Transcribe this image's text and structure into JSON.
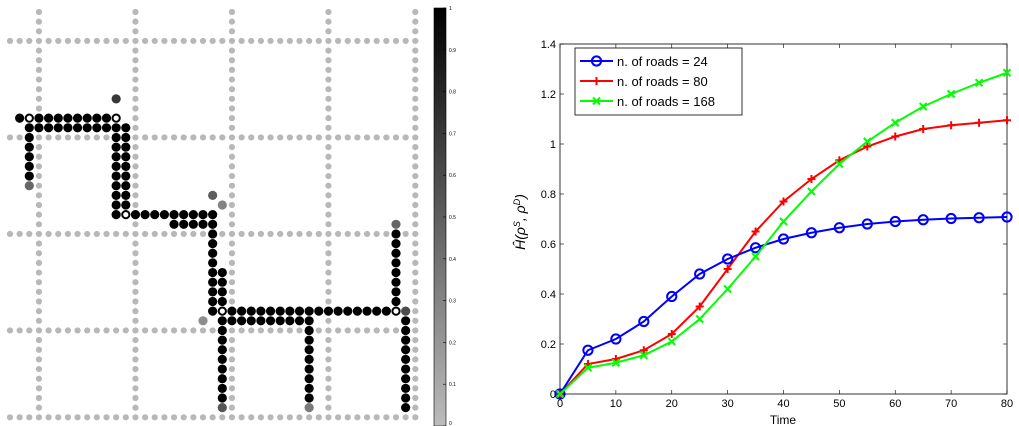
{
  "chart_data": [
    {
      "type": "heatmap",
      "grid": {
        "cols": 43,
        "rows": 43,
        "road_lines": [
          3,
          13,
          23,
          33,
          42
        ]
      },
      "legend": {
        "paths": [
          [
            [
              1,
              11
            ],
            [
              11,
              11
            ],
            [
              11,
              21
            ],
            [
              21,
              21
            ],
            [
              21,
              31
            ],
            [
              40,
              31
            ],
            [
              40,
              23
            ]
          ],
          [
            [
              2,
              12
            ],
            [
              2,
              17
            ]
          ],
          [
            [
              2,
              12
            ],
            [
              11,
              12
            ],
            [
              12,
              12
            ],
            [
              12,
              20
            ],
            [
              13,
              21
            ],
            [
              21,
              22
            ],
            [
              22,
              32
            ],
            [
              31,
              32
            ],
            [
              31,
              40
            ]
          ],
          [
            [
              22,
              32
            ],
            [
              22,
              40
            ]
          ],
          [
            [
              41,
              32
            ],
            [
              41,
              41
            ]
          ]
        ],
        "partial": [
          {
            "c": 11,
            "r": 9,
            "v": 0.7
          },
          {
            "c": 2,
            "r": 18,
            "v": 0.45
          },
          {
            "c": 21,
            "r": 19,
            "v": 0.5
          },
          {
            "c": 22,
            "r": 20,
            "v": 0.3
          },
          {
            "c": 40,
            "r": 22,
            "v": 0.45
          },
          {
            "c": 20,
            "r": 32,
            "v": 0.25
          },
          {
            "c": 22,
            "r": 41,
            "v": 0.55
          },
          {
            "c": 31,
            "r": 41,
            "v": 0.35
          },
          {
            "c": 41,
            "r": 31,
            "v": 0.6
          }
        ],
        "hollow": [
          {
            "c": 2,
            "r": 11
          },
          {
            "c": 11,
            "r": 11
          },
          {
            "c": 22,
            "r": 21
          },
          {
            "c": 22,
            "r": 31
          },
          {
            "c": 12,
            "r": 21
          },
          {
            "c": 32,
            "r": 32
          },
          {
            "c": 40,
            "r": 31
          }
        ]
      },
      "colorbar": {
        "ticks": [
          "0",
          "0.1",
          "0.2",
          "0.3",
          "0.4",
          "0.5",
          "0.6",
          "0.7",
          "0.8",
          "0.9",
          "1"
        ],
        "range": [
          0,
          1
        ],
        "colors": [
          "#bcbcbc",
          "#000000"
        ]
      }
    },
    {
      "type": "line",
      "xlabel": "Time",
      "ylabel_latex": "Ĥ(ρ^S, ρ^D)",
      "ylabel_main": "Ĥ(ρ",
      "ylabel_sup1": "S",
      "ylabel_mid": ", ρ",
      "ylabel_sup2": "D",
      "ylabel_end": ")",
      "xlim": [
        0,
        80
      ],
      "ylim": [
        0,
        1.4
      ],
      "xticks": [
        "0",
        "10",
        "20",
        "30",
        "40",
        "50",
        "60",
        "70",
        "80"
      ],
      "yticks": [
        "0",
        "0.2",
        "0.4",
        "0.6",
        "0.8",
        "1",
        "1.2",
        "1.4"
      ],
      "legend_position": "top-left",
      "x": [
        0,
        5,
        10,
        15,
        20,
        25,
        30,
        35,
        40,
        45,
        50,
        55,
        60,
        65,
        70,
        75,
        80
      ],
      "series": [
        {
          "name": "n. of roads = 24",
          "color": "#0000ff",
          "marker": "circle",
          "values": [
            0,
            0.175,
            0.22,
            0.29,
            0.39,
            0.48,
            0.54,
            0.585,
            0.62,
            0.645,
            0.665,
            0.68,
            0.69,
            0.697,
            0.702,
            0.705,
            0.708
          ]
        },
        {
          "name": "n. of roads = 80",
          "color": "#ff0000",
          "marker": "plus",
          "values": [
            0,
            0.12,
            0.14,
            0.175,
            0.24,
            0.35,
            0.5,
            0.65,
            0.77,
            0.86,
            0.935,
            0.99,
            1.03,
            1.06,
            1.075,
            1.085,
            1.095
          ]
        },
        {
          "name": "n. of roads = 168",
          "color": "#00ff00",
          "marker": "x",
          "values": [
            0,
            0.105,
            0.125,
            0.155,
            0.21,
            0.3,
            0.42,
            0.55,
            0.69,
            0.81,
            0.92,
            1.01,
            1.085,
            1.15,
            1.2,
            1.245,
            1.285
          ]
        }
      ]
    }
  ]
}
